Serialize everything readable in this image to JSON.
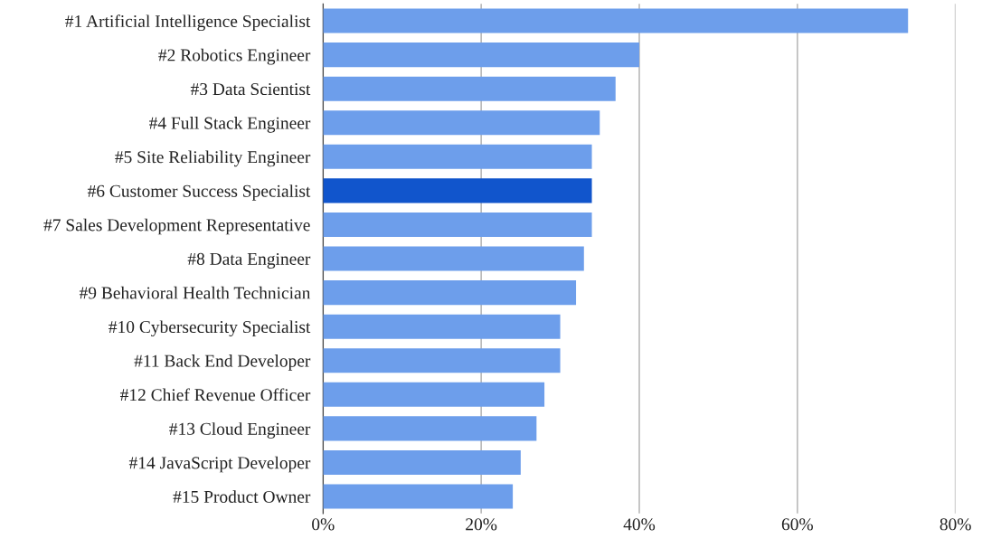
{
  "chart_data": {
    "type": "bar",
    "orientation": "horizontal",
    "categories": [
      "#1 Artificial Intelligence Specialist",
      "#2 Robotics Engineer",
      "#3 Data Scientist",
      "#4 Full Stack Engineer",
      "#5 Site Reliability Engineer",
      "#6 Customer Success Specialist",
      "#7 Sales Development Representative",
      "#8 Data Engineer",
      "#9 Behavioral Health Technician",
      "#10 Cybersecurity Specialist",
      "#11 Back End Developer",
      "#12 Chief Revenue Officer",
      "#13 Cloud Engineer",
      "#14 JavaScript Developer",
      "#15 Product Owner"
    ],
    "values": [
      74,
      40,
      37,
      35,
      34,
      34,
      34,
      33,
      32,
      30,
      30,
      28,
      27,
      25,
      24
    ],
    "colors": [
      "#6d9eeb",
      "#6d9eeb",
      "#6d9eeb",
      "#6d9eeb",
      "#6d9eeb",
      "#1155cc",
      "#6d9eeb",
      "#6d9eeb",
      "#6d9eeb",
      "#6d9eeb",
      "#6d9eeb",
      "#6d9eeb",
      "#6d9eeb",
      "#6d9eeb",
      "#6d9eeb"
    ],
    "xlim": [
      0,
      80
    ],
    "xticks": [
      {
        "value": 0,
        "label": "0%"
      },
      {
        "value": 20,
        "label": "20%"
      },
      {
        "value": 40,
        "label": "40%"
      },
      {
        "value": 60,
        "label": "60%"
      },
      {
        "value": 80,
        "label": "80%"
      }
    ],
    "grid": "x"
  }
}
